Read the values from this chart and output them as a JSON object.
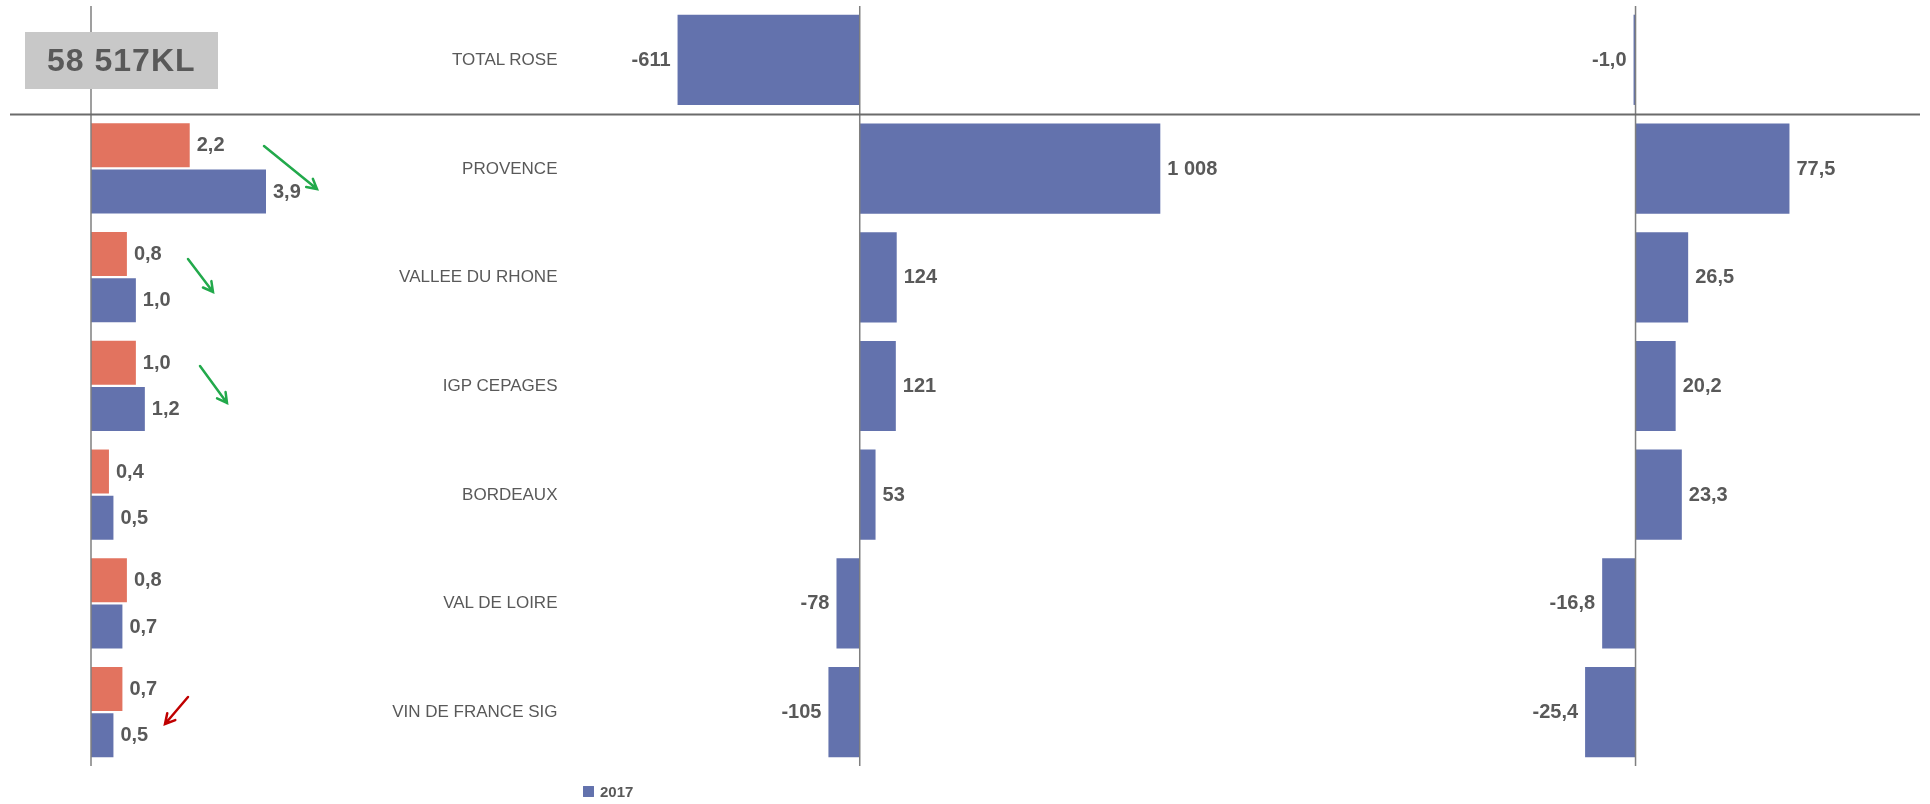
{
  "chart_data": [
    {
      "type": "bar",
      "orientation": "horizontal",
      "categories": [
        null,
        null,
        null,
        null,
        null,
        null
      ],
      "annotations": [
        "58 517KL"
      ],
      "series": [
        {
          "color": "#e2735f",
          "values": [
            2.2,
            0.8,
            1.0,
            0.4,
            0.8,
            0.7
          ],
          "value_labels": [
            "2,2",
            "0,8",
            "1,0",
            "0,4",
            "0,8",
            "0,7"
          ]
        },
        {
          "color": "#6372ad",
          "values": [
            3.9,
            1.0,
            1.2,
            0.5,
            0.7,
            0.5
          ],
          "value_labels": [
            "3,9",
            "1,0",
            "1,2",
            "0,5",
            "0,7",
            "0,5"
          ]
        }
      ]
    },
    {
      "type": "bar",
      "orientation": "horizontal",
      "categories": [
        "TOTAL ROSE",
        "PROVENCE",
        "VALLEE DU RHONE",
        "IGP CEPAGES",
        "BORDEAUX",
        "VAL DE LOIRE",
        "VIN DE FRANCE SIG"
      ],
      "tick_labels": "y",
      "legend": "bottom",
      "series": [
        {
          "name": "2017",
          "color": "#6372ad",
          "values": [
            -611,
            1008,
            124,
            121,
            53,
            -78,
            -105
          ],
          "value_labels": [
            "-611",
            "1 008",
            "124",
            "121",
            "53",
            "-78",
            "-105"
          ]
        }
      ]
    },
    {
      "type": "bar",
      "orientation": "horizontal",
      "categories": [
        null,
        null,
        null,
        null,
        null,
        null,
        null
      ],
      "series": [
        {
          "color": "#6372ad",
          "values": [
            -1.0,
            77.5,
            26.5,
            20.2,
            23.3,
            -16.8,
            -25.4
          ],
          "value_labels": [
            "-1,0",
            "77,5",
            "26,5",
            "20,2",
            "23,3",
            "-16,8",
            "-25,4"
          ]
        }
      ]
    }
  ]
}
